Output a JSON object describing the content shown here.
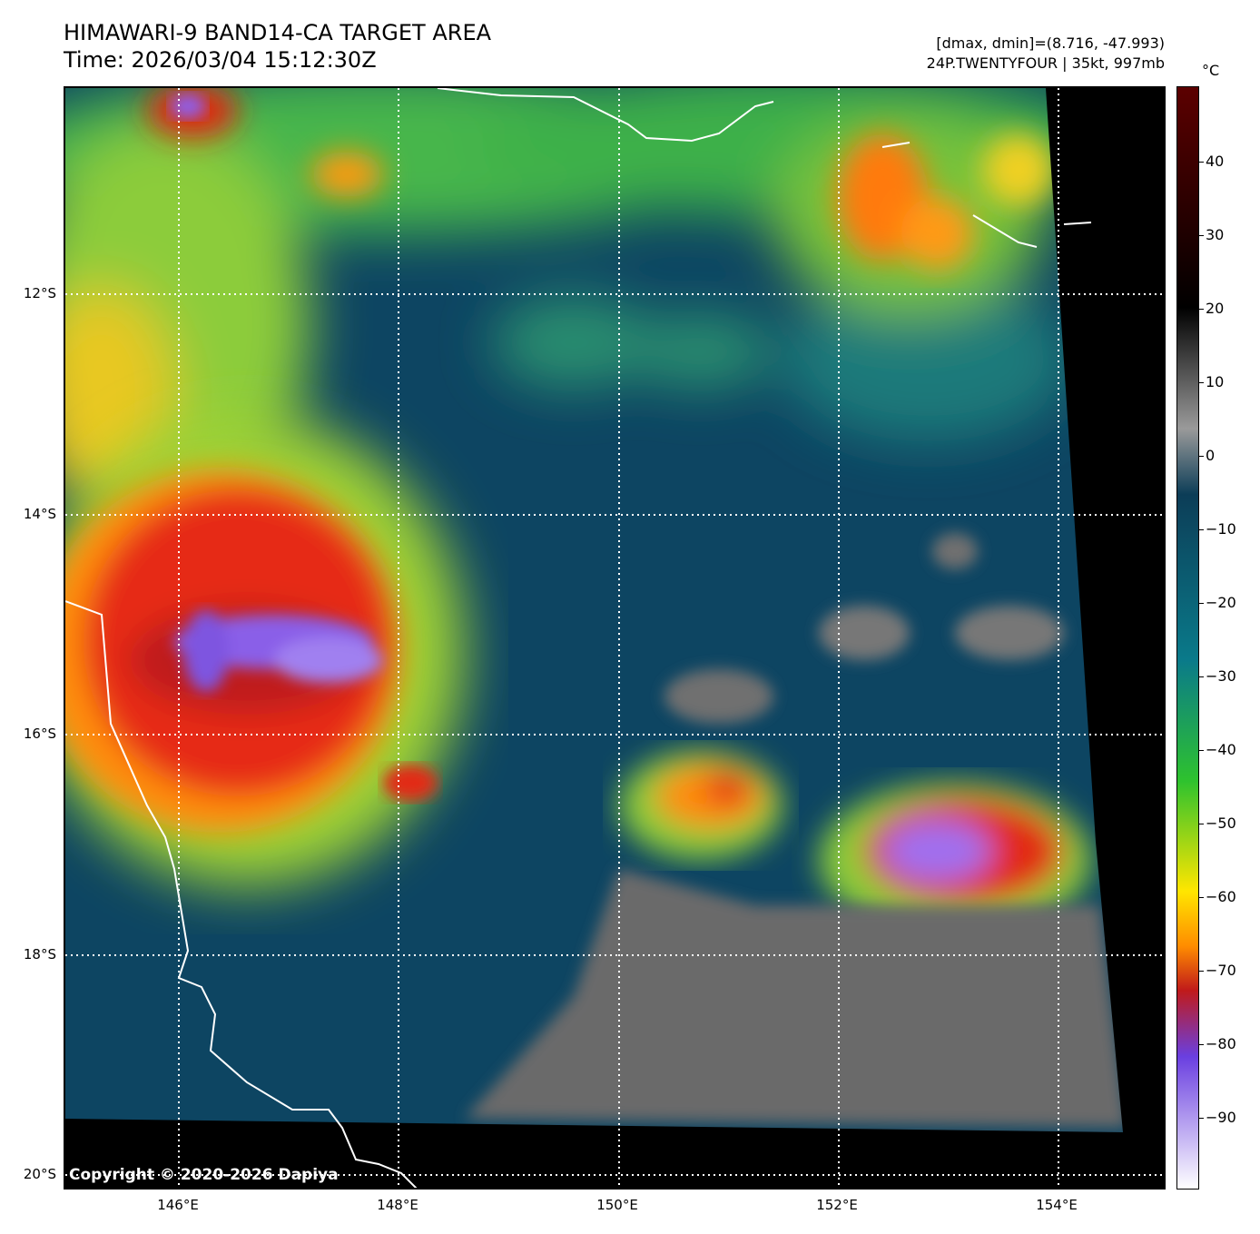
{
  "header": {
    "title": "HIMAWARI-9 BAND14-CA TARGET AREA",
    "time": "Time: 2026/03/04 15:12:30Z",
    "range_info": "[dmax, dmin]=(8.716, -47.993)",
    "storm_info": "24P.TWENTYFOUR | 35kt, 997mb"
  },
  "map": {
    "latitude_labels": [
      "12°S",
      "14°S",
      "16°S",
      "18°S",
      "20°S"
    ],
    "longitude_labels": [
      "146°E",
      "148°E",
      "150°E",
      "152°E",
      "154°E"
    ],
    "copyright": "Copyright © 2020-2026 Dapiya"
  },
  "colorbar": {
    "unit": "°C",
    "tick_labels": [
      "40",
      "30",
      "20",
      "10",
      "0",
      "−10",
      "−20",
      "−30",
      "−40",
      "−50",
      "−60",
      "−70",
      "−80",
      "−90"
    ],
    "colors": [
      "#ffffff",
      "#6a3fe0",
      "#c01a1a",
      "#ff8c00",
      "#ffe600",
      "#2ec22e",
      "#0a7a8a",
      "#0c3d57",
      "#9a9a9a",
      "#000000",
      "#5c0000"
    ]
  }
}
